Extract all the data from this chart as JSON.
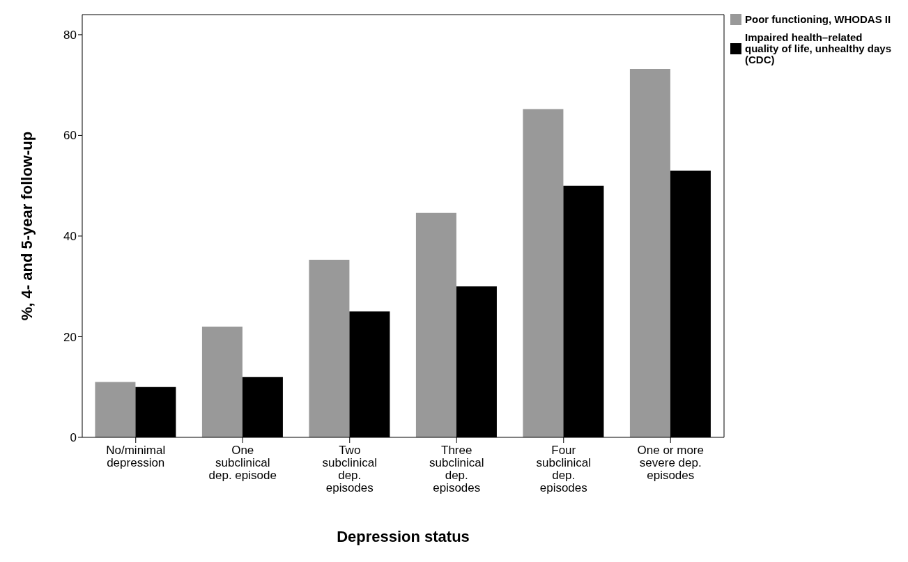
{
  "chart_data": {
    "type": "bar",
    "xlabel": "Depression status",
    "ylabel": "%, 4- and 5-year follow-up",
    "categories": [
      "No/minimal depression",
      "One subclinical dep. episode",
      "Two subclinical dep. episodes",
      "Three subclinical dep. episodes",
      "Four subclinical dep. episodes",
      "One or more severe dep. episodes"
    ],
    "series": [
      {
        "name": "Poor functioning, WHODAS II",
        "color": "#999999",
        "values": [
          11,
          22,
          35.3,
          44.6,
          65.2,
          73.2
        ]
      },
      {
        "name": "Impaired health–related quality of life, unhealthy days (CDC)",
        "color": "#000000",
        "values": [
          10,
          12,
          25,
          30,
          50,
          53
        ]
      }
    ],
    "ylim": [
      0,
      84
    ],
    "yticks": [
      0,
      20,
      40,
      60,
      80
    ],
    "legend": "top right"
  }
}
